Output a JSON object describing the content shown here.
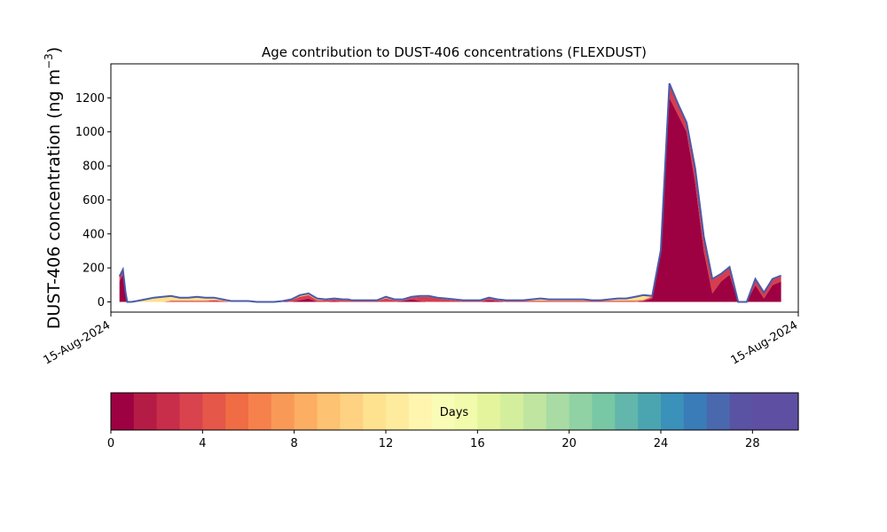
{
  "chart_data": {
    "type": "area",
    "title": "Age contribution to DUST-406 concentrations (FLEXDUST)",
    "ylabel": "DUST-406 concentration (ng m",
    "ylabel_sup": "−3",
    "ylabel_close": ")",
    "xlabel": "",
    "x_tick_labels": [
      "15-Aug-2024",
      "15-Aug-2024"
    ],
    "ylim": [
      -60,
      1400
    ],
    "yticks": [
      0,
      200,
      400,
      600,
      800,
      1000,
      1200
    ],
    "grid": false,
    "x": [
      0.05,
      0.07,
      0.085,
      0.095,
      0.105,
      0.12,
      0.15,
      0.2,
      0.25,
      0.3,
      0.35,
      0.4,
      0.45,
      0.5,
      0.55,
      0.6,
      0.65,
      0.7,
      0.75,
      0.8,
      0.85,
      0.9,
      0.95,
      1.0,
      1.05,
      1.1,
      1.15,
      1.2,
      1.25,
      1.3,
      1.35,
      1.38,
      1.4,
      1.45,
      1.5,
      1.55,
      1.6,
      1.65,
      1.7,
      1.75,
      1.8,
      1.85,
      1.9,
      1.95,
      2.0,
      2.05,
      2.1,
      2.15,
      2.2,
      2.25,
      2.3,
      2.35,
      2.4,
      2.45,
      2.5,
      2.55,
      2.6,
      2.65,
      2.7,
      2.75,
      2.8,
      2.85,
      2.9,
      2.95,
      3.0,
      3.05,
      3.1,
      3.15,
      3.2,
      3.25,
      3.3,
      3.35,
      3.4,
      3.45,
      3.5,
      3.55,
      3.6,
      3.65,
      3.7,
      3.75,
      3.8,
      3.85,
      3.9
    ],
    "series": [
      {
        "name": "",
        "color": "#9e0142",
        "values": [
          120,
          160,
          40,
          0,
          0,
          0,
          0,
          0,
          0,
          0,
          0,
          0,
          0,
          0,
          0,
          0,
          0,
          0,
          0,
          0,
          0,
          0,
          0,
          5,
          0,
          10,
          20,
          0,
          0,
          5,
          0,
          0,
          0,
          0,
          0,
          0,
          0,
          0,
          5,
          15,
          5,
          0,
          0,
          0,
          0,
          0,
          0,
          0,
          10,
          5,
          0,
          0,
          0,
          0,
          0,
          0,
          0,
          0,
          0,
          0,
          0,
          0,
          0,
          0,
          0,
          0,
          5,
          20,
          280,
          1200,
          1100,
          1000,
          700,
          300,
          50,
          120,
          160,
          0,
          0,
          100,
          20,
          100,
          120
        ]
      },
      {
        "name": "",
        "color": "#d53e4f",
        "values": [
          30,
          30,
          20,
          0,
          0,
          0,
          0,
          0,
          0,
          0,
          5,
          5,
          5,
          5,
          5,
          10,
          5,
          0,
          0,
          0,
          0,
          0,
          0,
          0,
          10,
          20,
          20,
          10,
          10,
          10,
          10,
          10,
          5,
          5,
          5,
          5,
          20,
          10,
          5,
          10,
          25,
          30,
          20,
          15,
          10,
          5,
          5,
          5,
          10,
          5,
          5,
          5,
          5,
          5,
          5,
          5,
          5,
          5,
          5,
          5,
          5,
          5,
          5,
          5,
          5,
          5,
          5,
          10,
          20,
          80,
          60,
          50,
          80,
          80,
          80,
          40,
          40,
          0,
          0,
          30,
          30,
          30,
          30
        ]
      },
      {
        "name": "",
        "color": "#fdae61",
        "values": [
          0,
          0,
          0,
          0,
          0,
          0,
          0,
          0,
          0,
          0,
          5,
          5,
          5,
          5,
          5,
          5,
          5,
          0,
          0,
          0,
          0,
          0,
          0,
          0,
          5,
          10,
          10,
          10,
          5,
          5,
          5,
          5,
          5,
          5,
          5,
          5,
          5,
          5,
          5,
          5,
          5,
          5,
          5,
          5,
          5,
          5,
          5,
          5,
          5,
          5,
          5,
          5,
          5,
          5,
          5,
          5,
          5,
          5,
          5,
          5,
          5,
          5,
          5,
          5,
          5,
          5,
          5,
          5,
          5,
          5,
          5,
          5,
          5,
          5,
          5,
          5,
          5,
          0,
          0,
          5,
          5,
          5,
          5
        ]
      },
      {
        "name": "",
        "color": "#fee08b",
        "values": [
          0,
          0,
          0,
          0,
          0,
          0,
          5,
          15,
          25,
          30,
          25,
          15,
          15,
          20,
          15,
          10,
          5,
          5,
          5,
          5,
          0,
          0,
          0,
          0,
          0,
          0,
          0,
          0,
          0,
          0,
          0,
          0,
          0,
          0,
          0,
          0,
          5,
          0,
          0,
          0,
          0,
          0,
          0,
          0,
          0,
          0,
          0,
          0,
          0,
          0,
          0,
          0,
          0,
          5,
          10,
          5,
          5,
          5,
          5,
          5,
          0,
          0,
          5,
          10,
          10,
          20,
          20,
          0,
          0,
          0,
          0,
          0,
          0,
          0,
          0,
          0,
          0,
          0,
          0,
          0,
          0,
          0,
          0
        ]
      },
      {
        "name": "",
        "color": "#e6f598",
        "values": [
          0,
          0,
          0,
          0,
          0,
          0,
          0,
          0,
          0,
          0,
          0,
          0,
          0,
          0,
          0,
          0,
          0,
          0,
          0,
          0,
          0,
          0,
          0,
          0,
          0,
          0,
          0,
          0,
          0,
          0,
          0,
          0,
          0,
          0,
          0,
          0,
          0,
          0,
          0,
          0,
          0,
          0,
          0,
          0,
          0,
          0,
          0,
          0,
          0,
          0,
          0,
          0,
          0,
          0,
          0,
          0,
          0,
          0,
          0,
          0,
          0,
          0,
          0,
          0,
          0,
          0,
          5,
          0,
          0,
          0,
          0,
          0,
          0,
          0,
          0,
          0,
          0,
          0,
          0,
          0,
          0,
          0,
          0
        ]
      }
    ],
    "total_color": "#4a5ba8",
    "colorbar": {
      "label": "Days",
      "min": 0,
      "max": 30,
      "ticks": [
        0,
        4,
        8,
        12,
        16,
        20,
        24,
        28
      ],
      "colors": [
        "#9e0142",
        "#b41c45",
        "#c82d4a",
        "#d8434e",
        "#e55749",
        "#ef6c45",
        "#f6814c",
        "#f99957",
        "#fcae63",
        "#fdc272",
        "#fed282",
        "#fee28f",
        "#feeb9d",
        "#fff5ae",
        "#f9fcb4",
        "#f2faac",
        "#e3f49c",
        "#d3ee9c",
        "#c0e5a0",
        "#a9dca4",
        "#90d2a4",
        "#78c7a5",
        "#62b6ab",
        "#4ba5b1",
        "#3a91b9",
        "#3a7cb8",
        "#4a68ae",
        "#5a52a3",
        "#5e4fa2",
        "#5e4fa2"
      ]
    }
  }
}
